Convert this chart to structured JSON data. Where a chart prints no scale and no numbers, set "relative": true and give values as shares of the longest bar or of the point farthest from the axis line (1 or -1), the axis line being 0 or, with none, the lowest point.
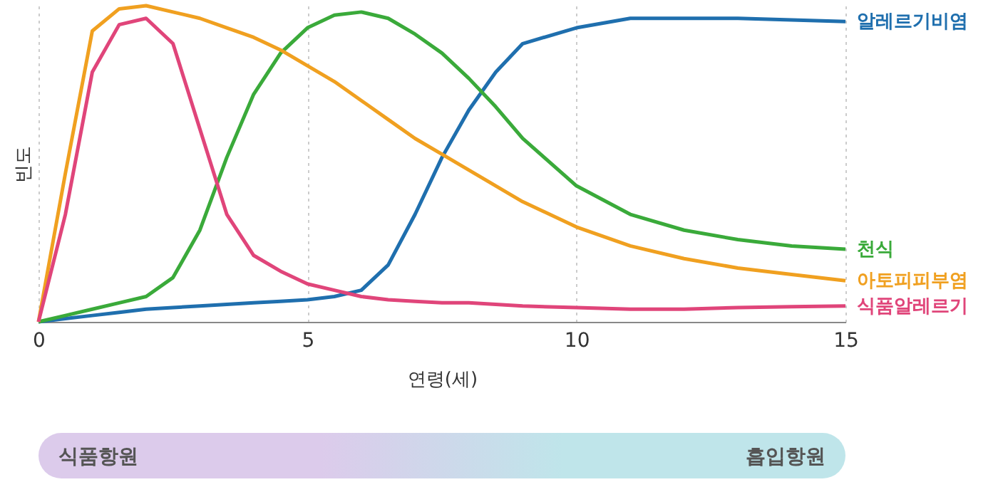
{
  "chart_data": {
    "type": "line",
    "relative": true,
    "xlabel": "연령(세)",
    "ylabel": "빈도",
    "x": [
      0,
      0.5,
      1,
      1.5,
      2,
      2.5,
      3,
      3.5,
      4,
      4.5,
      5,
      5.5,
      6,
      6.5,
      7,
      7.5,
      8,
      8.5,
      9,
      10,
      11,
      12,
      13,
      14,
      15
    ],
    "xlim": [
      0,
      15
    ],
    "xticks": [
      0,
      5,
      10,
      15
    ],
    "grid": "x",
    "marker": "none",
    "line_style": "solid",
    "series": [
      {
        "name": "알레르기비염",
        "color": "#1f6fae",
        "values": [
          0,
          0.01,
          0.02,
          0.03,
          0.04,
          0.045,
          0.05,
          0.055,
          0.06,
          0.065,
          0.07,
          0.08,
          0.1,
          0.18,
          0.34,
          0.52,
          0.67,
          0.79,
          0.88,
          0.93,
          0.96,
          0.96,
          0.96,
          0.955,
          0.95
        ]
      },
      {
        "name": "천식",
        "color": "#3aaa3a",
        "values": [
          0,
          0.02,
          0.04,
          0.06,
          0.08,
          0.14,
          0.29,
          0.52,
          0.72,
          0.85,
          0.93,
          0.97,
          0.98,
          0.96,
          0.91,
          0.85,
          0.77,
          0.68,
          0.58,
          0.43,
          0.34,
          0.29,
          0.26,
          0.24,
          0.23
        ]
      },
      {
        "name": "아토피피부염",
        "color": "#f0a020",
        "values": [
          0,
          0.47,
          0.92,
          0.99,
          1.0,
          0.98,
          0.96,
          0.93,
          0.9,
          0.86,
          0.81,
          0.76,
          0.7,
          0.64,
          0.58,
          0.53,
          0.48,
          0.43,
          0.38,
          0.3,
          0.24,
          0.2,
          0.17,
          0.15,
          0.13
        ]
      },
      {
        "name": "식품알레르기",
        "color": "#e0457a",
        "values": [
          0,
          0.34,
          0.79,
          0.94,
          0.96,
          0.88,
          0.61,
          0.34,
          0.21,
          0.16,
          0.12,
          0.1,
          0.08,
          0.07,
          0.065,
          0.06,
          0.06,
          0.055,
          0.05,
          0.045,
          0.04,
          0.04,
          0.045,
          0.048,
          0.05
        ]
      }
    ],
    "annotations": [
      "식품항원",
      "흡입항원"
    ]
  }
}
